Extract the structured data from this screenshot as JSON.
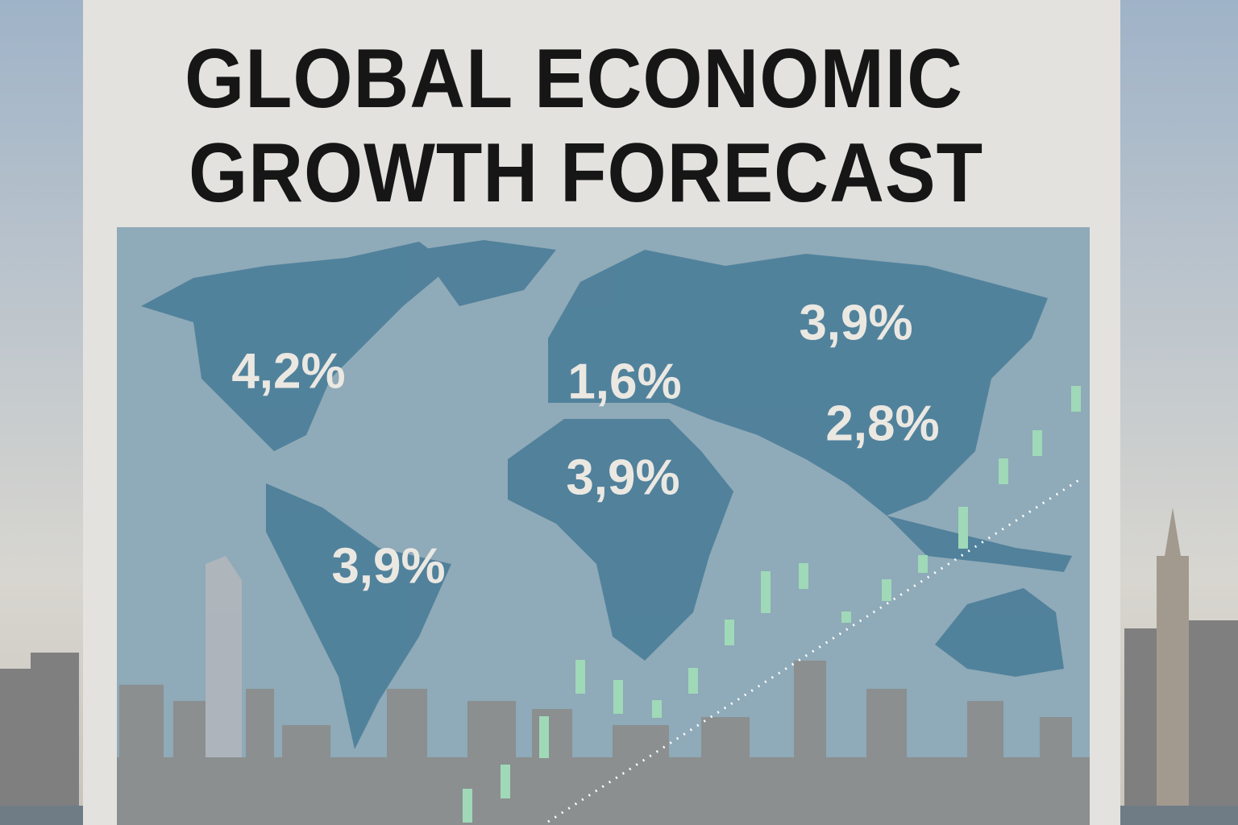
{
  "title": [
    "GLOBAL ECONOMIC",
    "GROWTH FORECAST"
  ],
  "labels": [
    "4,2%",
    "1,6%",
    "3,9%",
    "2,8%",
    "3,9%",
    "3,9%"
  ]
}
